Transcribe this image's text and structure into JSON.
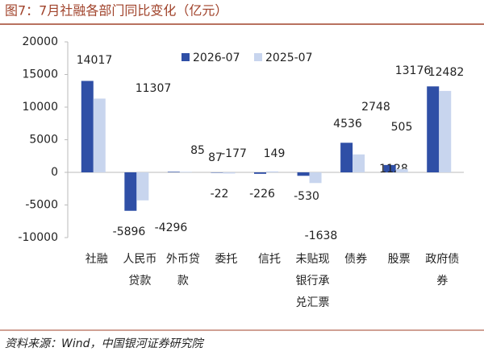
{
  "chart_data": {
    "type": "bar",
    "title": "图7：7月社融各部门同比变化（亿元）",
    "source": "资料来源：Wind，中国银河证券研究院",
    "categories": [
      "社融",
      "人民币贷款",
      "外币贷款",
      "委托",
      "信托",
      "未贴现银行承兑汇票",
      "债券",
      "股票",
      "政府债券"
    ],
    "series": [
      {
        "name": "2026-07",
        "color": "#2f4fa6",
        "values": [
          14017,
          -5896,
          85,
          -22,
          -226,
          -530,
          4536,
          1128,
          13176
        ]
      },
      {
        "name": "2025-07",
        "color": "#c8d5ee",
        "values": [
          11307,
          -4296,
          87,
          -177,
          149,
          -1638,
          2748,
          505,
          12482
        ]
      }
    ],
    "ylim": [
      -10000,
      20000
    ],
    "yticks": [
      -10000,
      -5000,
      0,
      5000,
      10000,
      15000,
      20000
    ]
  }
}
